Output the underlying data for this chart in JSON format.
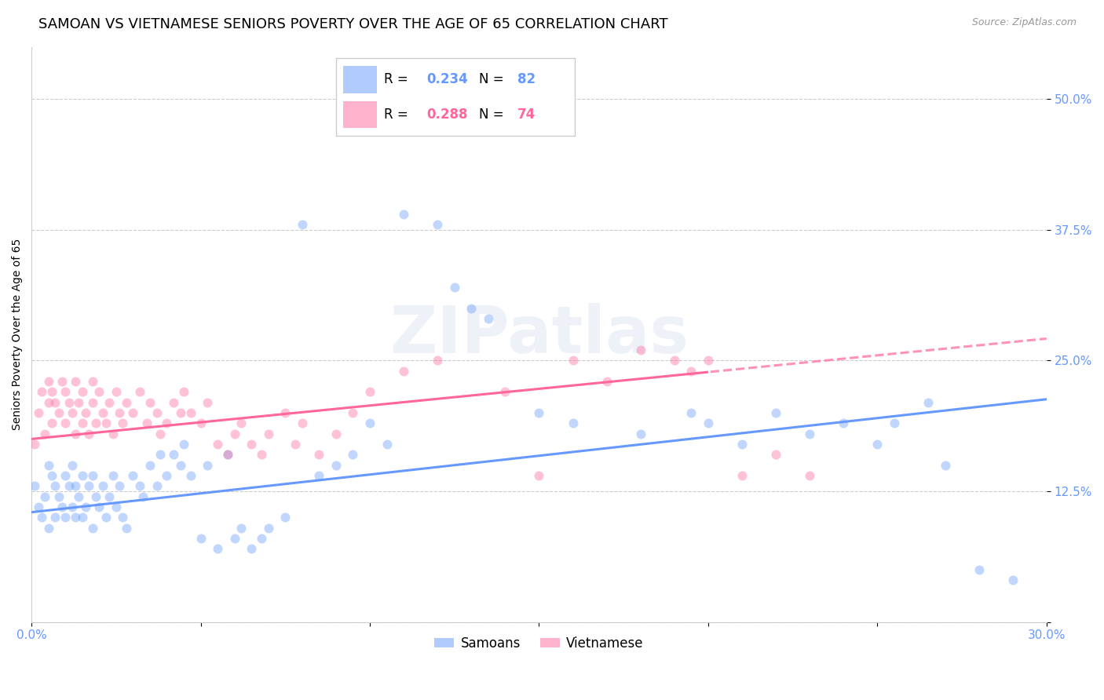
{
  "title": "SAMOAN VS VIETNAMESE SENIORS POVERTY OVER THE AGE OF 65 CORRELATION CHART",
  "source": "Source: ZipAtlas.com",
  "ylabel": "Seniors Poverty Over the Age of 65",
  "watermark": "ZIPatlas",
  "xlim": [
    0.0,
    0.3
  ],
  "ylim": [
    0.0,
    0.55
  ],
  "ytick_positions": [
    0.0,
    0.125,
    0.25,
    0.375,
    0.5
  ],
  "yticklabels": [
    "",
    "12.5%",
    "25.0%",
    "37.5%",
    "50.0%"
  ],
  "grid_color": "#cccccc",
  "background_color": "#ffffff",
  "samoan_color": "#6699ff",
  "vietnamese_color": "#ff6699",
  "samoan_R": 0.234,
  "samoan_N": 82,
  "vietnamese_R": 0.288,
  "vietnamese_N": 74,
  "legend_label_samoan": "Samoans",
  "legend_label_vietnamese": "Vietnamese",
  "title_fontsize": 13,
  "axis_label_fontsize": 10,
  "tick_fontsize": 11,
  "source_fontsize": 9,
  "legend_fontsize": 12,
  "marker_size": 75,
  "marker_alpha": 0.4,
  "line_width": 2.2
}
